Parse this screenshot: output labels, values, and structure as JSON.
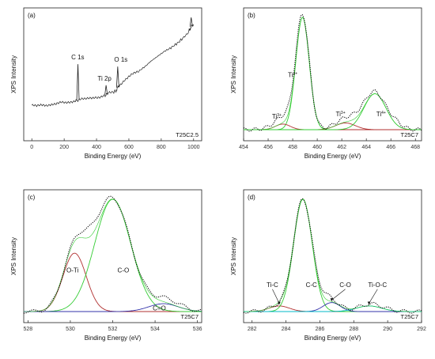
{
  "chart_data": [
    {
      "type": "line",
      "panel": "(a)",
      "xlabel": "Binding Energy (eV)",
      "ylabel": "XPS Intensity",
      "xlim": [
        -50,
        1050
      ],
      "xticks": [
        0,
        200,
        400,
        600,
        800,
        1000
      ],
      "sample_label": "T25C2.5",
      "series": [
        {
          "type": "survey",
          "color": "#222222",
          "x": [
            0,
            30,
            60,
            90,
            120,
            150,
            180,
            210,
            240,
            270,
            285,
            300,
            330,
            360,
            390,
            420,
            450,
            460,
            470,
            500,
            520,
            531,
            540,
            570,
            600,
            630,
            660,
            700,
            740,
            780,
            820,
            860,
            900,
            940,
            970,
            985,
            1000
          ],
          "y": [
            0.25,
            0.24,
            0.25,
            0.25,
            0.26,
            0.26,
            0.27,
            0.27,
            0.28,
            0.29,
            0.29,
            0.3,
            0.3,
            0.31,
            0.32,
            0.32,
            0.33,
            0.34,
            0.35,
            0.36,
            0.37,
            0.4,
            0.42,
            0.46,
            0.49,
            0.52,
            0.54,
            0.58,
            0.63,
            0.67,
            0.71,
            0.74,
            0.78,
            0.83,
            0.88,
            0.92,
            0.94
          ]
        }
      ],
      "peaks": [
        {
          "x": 285,
          "y": 0.6,
          "label": "C 1s"
        },
        {
          "x": 459,
          "y": 0.42,
          "label": "Ti 2p"
        },
        {
          "x": 531,
          "y": 0.58,
          "label": "O 1s"
        },
        {
          "x": 985,
          "y": 1.0,
          "label": ""
        }
      ]
    },
    {
      "type": "line",
      "panel": "(b)",
      "xlabel": "Binding Energy (eV)",
      "ylabel": "XPS Intensity",
      "xlim": [
        454,
        468.5
      ],
      "xticks": [
        454,
        456,
        458,
        460,
        462,
        464,
        466,
        468
      ],
      "sample_label": "T25C7",
      "components": [
        {
          "center": 458.8,
          "height": 1.0,
          "width": 0.55,
          "color": "#33cc33",
          "label_main": "Ti",
          "label_sup": "4+",
          "label_x": 458.0,
          "label_y": 0.47
        },
        {
          "center": 457.2,
          "height": 0.05,
          "width": 0.6,
          "color": "#b03030",
          "label_main": "Ti",
          "label_sup": "3+",
          "label_x": 456.7,
          "label_y": 0.1
        },
        {
          "center": 462.3,
          "height": 0.06,
          "width": 0.8,
          "color": "#b03030",
          "label_main": "Ti",
          "label_sup": "3+",
          "label_x": 461.9,
          "label_y": 0.12
        },
        {
          "center": 464.7,
          "height": 0.32,
          "width": 0.9,
          "color": "#33cc33",
          "label_main": "Ti",
          "label_sup": "4+",
          "label_x": 465.2,
          "label_y": 0.12
        }
      ],
      "baseline": 0.0
    },
    {
      "type": "line",
      "panel": "(c)",
      "xlabel": "Binding Energy (eV)",
      "ylabel": "XPS Intensity",
      "xlim": [
        527.8,
        536.2
      ],
      "xticks": [
        528,
        530,
        532,
        534,
        536
      ],
      "sample_label": "T25C7",
      "components": [
        {
          "center": 530.2,
          "height": 0.52,
          "width": 0.55,
          "color": "#b03030",
          "label": "O-Ti",
          "label_x": 530.1,
          "label_y": 0.35
        },
        {
          "center": 532.0,
          "height": 1.0,
          "width": 0.85,
          "color": "#33cc33",
          "label": "C-O",
          "label_x": 532.5,
          "label_y": 0.35
        },
        {
          "center": 534.4,
          "height": 0.07,
          "width": 0.7,
          "color": "#3333aa",
          "label": "C=O",
          "label_x": 534.2,
          "label_y": 0.01
        }
      ],
      "baseline": 0.0
    },
    {
      "type": "line",
      "panel": "(d)",
      "xlabel": "Binding Energy (eV)",
      "ylabel": "XPS Intensity",
      "xlim": [
        281.5,
        292
      ],
      "xticks": [
        282,
        284,
        286,
        288,
        290,
        292
      ],
      "sample_label": "T25C7",
      "components": [
        {
          "center": 283.6,
          "height": 0.05,
          "width": 0.6,
          "color": "#b03030",
          "label": "Ti-C",
          "label_x": 283.2,
          "label_y": 0.22
        },
        {
          "center": 285.0,
          "height": 1.0,
          "width": 0.55,
          "color": "#33cc33",
          "label": "C-C",
          "label_x": 285.5,
          "label_y": 0.22
        },
        {
          "center": 286.7,
          "height": 0.08,
          "width": 0.5,
          "color": "#3333aa",
          "label": "C-O",
          "label_x": 287.5,
          "label_y": 0.22
        },
        {
          "center": 288.9,
          "height": 0.05,
          "width": 0.75,
          "color": "#00b8c8",
          "label": "Ti-O-C",
          "label_x": 289.4,
          "label_y": 0.22
        }
      ],
      "baseline": 0.0
    }
  ]
}
